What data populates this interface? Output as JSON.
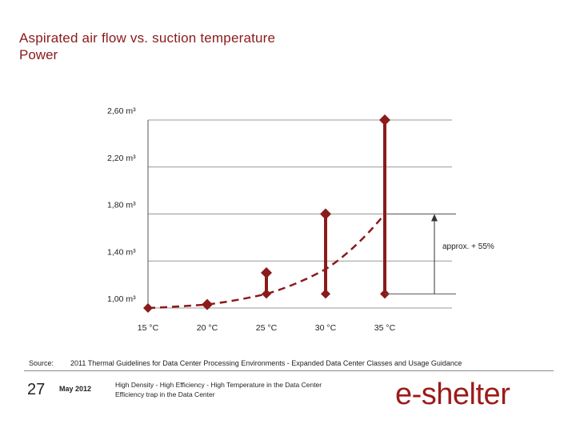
{
  "header": {
    "title": "Aspirated air flow vs. suction temperature",
    "subtitle": "Power"
  },
  "chart_data": {
    "type": "line",
    "y_tick_labels": [
      "2,60 m³",
      "2,20 m³",
      "1,80 m³",
      "1,40 m³",
      "1,00 m³"
    ],
    "y_ticks": [
      2.6,
      2.2,
      1.8,
      1.4,
      1.0
    ],
    "ylim": [
      1.0,
      2.6
    ],
    "categories": [
      "15 °C",
      "20 °C",
      "25 °C",
      "30 °C",
      "35 °C"
    ],
    "curve": {
      "x": [
        15,
        20,
        25,
        30,
        35
      ],
      "y": [
        1.0,
        1.03,
        1.12,
        1.33,
        1.8
      ]
    },
    "ranges": [
      {
        "x": 20,
        "low": 1.03,
        "high": 1.03
      },
      {
        "x": 25,
        "low": 1.12,
        "high": 1.3
      },
      {
        "x": 30,
        "low": 1.12,
        "high": 1.8
      },
      {
        "x": 35,
        "low": 1.12,
        "high": 2.6
      }
    ],
    "annotation": "approx. + 55%",
    "annotation_range": [
      1.12,
      1.8
    ],
    "colors": {
      "series": "#8b1a1a",
      "axis": "#555555",
      "arrow": "#333333"
    }
  },
  "footer": {
    "source_label": "Source:",
    "source_text": "2011 Thermal Guidelines for Data Center Processing Environments - Expanded Data Center Classes and Usage Guidance",
    "page_number": "27",
    "date": "May 2012",
    "line1": "High Density - High Efficiency - High Temperature in the Data Center",
    "line2": "Efficiency trap in the Data Center",
    "logo_text": "e-shelter"
  }
}
